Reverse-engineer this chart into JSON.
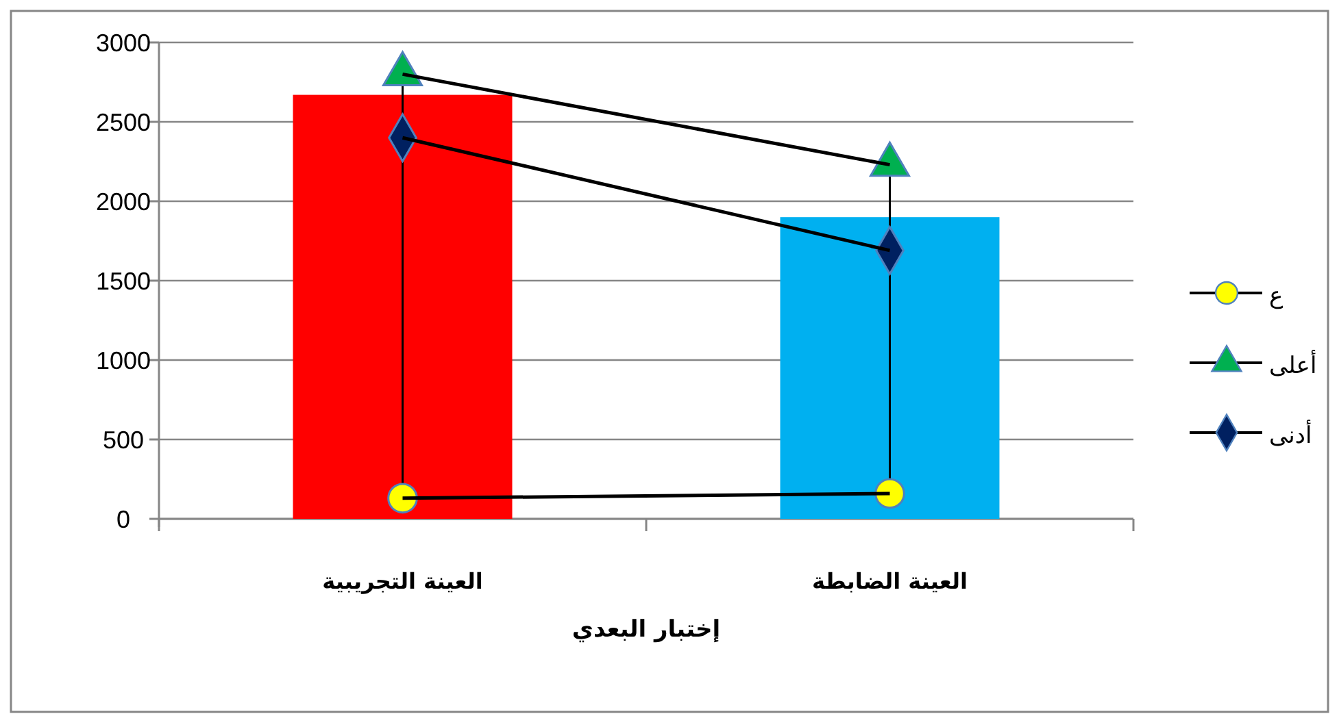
{
  "chart_data": {
    "type": "bar",
    "xlabel": "إختبار البعدي",
    "categories": [
      "العينة التجريبية",
      "العينة الضابطة"
    ],
    "series": [
      {
        "type": "bar",
        "colors": [
          "#ff0000",
          "#00b0f0"
        ],
        "values": [
          2670,
          1900
        ]
      },
      {
        "type": "line",
        "name": "ع",
        "color": "#ffff00",
        "marker": "circle",
        "values": [
          130,
          160
        ],
        "errors": [
          [
            130,
            2800
          ],
          [
            160,
            2230
          ]
        ]
      },
      {
        "type": "line",
        "name": "أعلى",
        "color": "#00b050",
        "marker": "triangle",
        "values": [
          2800,
          2230
        ]
      },
      {
        "type": "line",
        "name": "أدنى",
        "color": "#002060",
        "marker": "diamond",
        "values": [
          2400,
          1690
        ]
      }
    ],
    "ylim": [
      0,
      3000
    ],
    "yticks": [
      0,
      500,
      1000,
      1500,
      2000,
      2500,
      3000
    ],
    "grid": "y",
    "legend": "right"
  }
}
